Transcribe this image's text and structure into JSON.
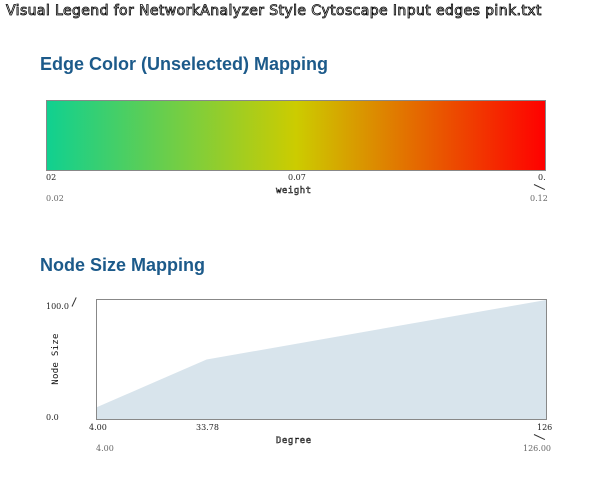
{
  "window": {
    "title": "Visual Legend for NetworkAnalyzer Style Cytoscape Input edges pink.txt"
  },
  "edge_color_section": {
    "title": "Edge Color (Unselected) Mapping",
    "colors": [
      "#10d090",
      "#cccc00",
      "#ff0000"
    ],
    "tick_left": "02",
    "tick_mid": "0.07",
    "tick_right": "0.",
    "axis_label": "weight",
    "range_min": "0.02",
    "range_max": "0.12"
  },
  "node_size_section": {
    "title": "Node Size Mapping",
    "y_label": "Node Size",
    "y_max": "100.0",
    "y_min": "0.0",
    "x_tick_min": "4.00",
    "x_tick_mid": "33.78",
    "x_tick_max": "126",
    "x_label": "Degree",
    "range_min": "4.00",
    "range_max": "126.00",
    "fill_color": "#d8e4ec"
  },
  "chart_data": {
    "type": "area",
    "xlabel": "Degree",
    "ylabel": "Node Size",
    "x": [
      4.0,
      33.78,
      126.0
    ],
    "series": [
      {
        "values": [
          10,
          50,
          100
        ]
      }
    ],
    "xlim": [
      4.0,
      126.0
    ],
    "ylim": [
      0.0,
      100.0
    ],
    "grid": false
  }
}
